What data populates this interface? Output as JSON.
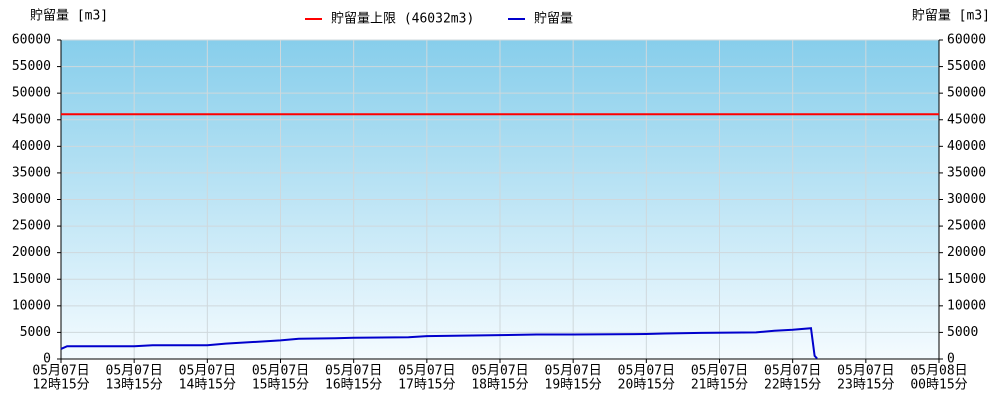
{
  "chart_data": {
    "type": "line",
    "ylabel": "貯留量 [m3]",
    "y2label": "貯留量 [m3]",
    "threshold": {
      "name": "貯留量上限 (46032m3)",
      "value": 46032,
      "color": "#ff0000"
    },
    "xlim": [
      "05月07日 12時15分",
      "05月08日 00時15分"
    ],
    "xticks": [
      {
        "date": "05月07日",
        "time": "12時15分"
      },
      {
        "date": "05月07日",
        "time": "13時15分"
      },
      {
        "date": "05月07日",
        "time": "14時15分"
      },
      {
        "date": "05月07日",
        "time": "15時15分"
      },
      {
        "date": "05月07日",
        "time": "16時15分"
      },
      {
        "date": "05月07日",
        "time": "17時15分"
      },
      {
        "date": "05月07日",
        "time": "18時15分"
      },
      {
        "date": "05月07日",
        "time": "19時15分"
      },
      {
        "date": "05月07日",
        "time": "20時15分"
      },
      {
        "date": "05月07日",
        "time": "21時15分"
      },
      {
        "date": "05月07日",
        "time": "22時15分"
      },
      {
        "date": "05月07日",
        "time": "23時15分"
      },
      {
        "date": "05月08日",
        "time": "00時15分"
      }
    ],
    "x": [
      "05月07日 12時15分",
      "05月07日 12時20分",
      "05月07日 13時15分",
      "05月07日 13時30分",
      "05月07日 14時15分",
      "05月07日 14時30分",
      "05月07日 15時00分",
      "05月07日 15時15分",
      "05月07日 15時30分",
      "05月07日 16時00分",
      "05月07日 16時15分",
      "05月07日 17時00分",
      "05月07日 17時15分",
      "05月07日 17時45分",
      "05月07日 18時15分",
      "05月07日 18時45分",
      "05月07日 19時15分",
      "05月07日 20時15分",
      "05月07日 20時30分",
      "05月07日 21時00分",
      "05月07日 21時45分",
      "05月07日 22時00分",
      "05月07日 22時15分",
      "05月07日 22時30分",
      "05月07日 22時33分",
      "05月07日 22時35分"
    ],
    "series": [
      {
        "name": "貯留量",
        "color": "#0000cc",
        "values": [
          1900,
          2400,
          2400,
          2600,
          2600,
          2900,
          3300,
          3500,
          3800,
          3900,
          4000,
          4100,
          4300,
          4400,
          4500,
          4600,
          4600,
          4700,
          4800,
          4900,
          5000,
          5300,
          5500,
          5800,
          600,
          100
        ]
      }
    ],
    "ylim": [
      0,
      60000
    ],
    "yticks": [
      0,
      5000,
      10000,
      15000,
      20000,
      25000,
      30000,
      35000,
      40000,
      45000,
      50000,
      55000,
      60000
    ],
    "grid": true
  }
}
